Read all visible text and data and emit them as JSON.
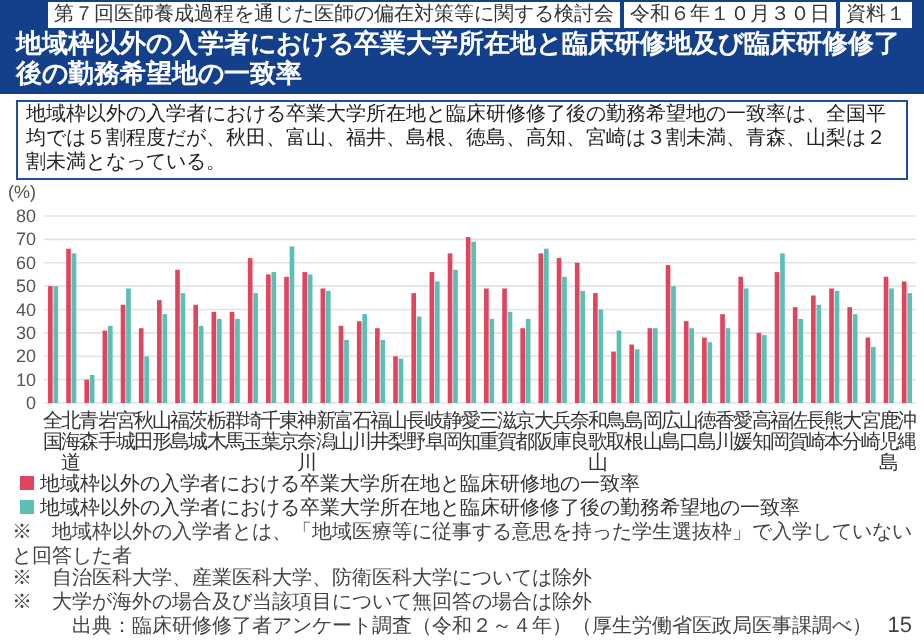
{
  "chart_data": {
    "type": "bar",
    "title": "地域枠以外の入学者における卒業大学所在地と臨床研修地及び臨床研修修了後の勤務希望地の一致率",
    "subtitle": "地域枠以外の入学者における卒業大学所在地と臨床研修修了後の勤務希望地の一致率は、全国平均では５割程度だが、秋田、富山、福井、島根、徳島、高知、宮崎は３割未満、青森、山梨は２割未満となっている。",
    "ylabel": "(%)",
    "categories": [
      "全国",
      "北海道",
      "青森",
      "岩手",
      "宮城",
      "秋田",
      "山形",
      "福島",
      "茨城",
      "栃木",
      "群馬",
      "埼玉",
      "千葉",
      "東京",
      "神奈川",
      "新潟",
      "富山",
      "石川",
      "福井",
      "山梨",
      "長野",
      "岐阜",
      "静岡",
      "愛知",
      "三重",
      "滋賀",
      "京都",
      "大阪",
      "兵庫",
      "奈良",
      "和歌山",
      "鳥取",
      "島根",
      "岡山",
      "広島",
      "山口",
      "徳島",
      "香川",
      "愛媛",
      "高知",
      "福岡",
      "佐賀",
      "長崎",
      "熊本",
      "大分",
      "宮崎",
      "鹿児島",
      "沖縄"
    ],
    "series": [
      {
        "name": "地域枠以外の入学者における卒業大学所在地と臨床研修地の一致率",
        "color": "#e0455f",
        "values": [
          50,
          66,
          10,
          31,
          42,
          32,
          44,
          57,
          42,
          39,
          39,
          62,
          55,
          54,
          56,
          49,
          33,
          35,
          32,
          20,
          47,
          56,
          64,
          71,
          49,
          49,
          32,
          64,
          62,
          60,
          47,
          22,
          25,
          32,
          59,
          35,
          28,
          38,
          54,
          30,
          56,
          41,
          46,
          49,
          41,
          28,
          54,
          52
        ]
      },
      {
        "name": "地域枠以外の入学者における卒業大学所在地と臨床研修修了後の勤務希望地の一致率",
        "color": "#5bbfb5",
        "values": [
          50,
          64,
          12,
          33,
          49,
          20,
          38,
          47,
          33,
          36,
          36,
          47,
          56,
          67,
          55,
          48,
          27,
          38,
          27,
          19,
          37,
          52,
          57,
          69,
          36,
          39,
          36,
          66,
          54,
          48,
          40,
          31,
          23,
          32,
          50,
          32,
          26,
          32,
          49,
          29,
          64,
          36,
          42,
          48,
          38,
          24,
          49,
          47
        ]
      }
    ],
    "ylim": [
      0,
      80
    ],
    "yticks": [
      0,
      10,
      20,
      30,
      40,
      50,
      60,
      70,
      80
    ],
    "grid": "y",
    "legend": "bottom",
    "annotations": [
      "第７回医師養成過程を通じた医師の偏在対策等に関する検討会",
      "令和６年１０月３０日",
      "資料１",
      "※　地域枠以外の入学者とは、「地域医療等に従事する意思を持った学生選抜枠」で入学していないと回答した者",
      "※　自治医科大学、産業医科大学、防衛医科大学については除外",
      "※　大学が海外の場合及び当該項目について無回答の場合は除外",
      "出典：臨床研修修了者アンケート調査（令和２～４年）（厚生労働省医政局医事課調べ）",
      "15"
    ]
  }
}
